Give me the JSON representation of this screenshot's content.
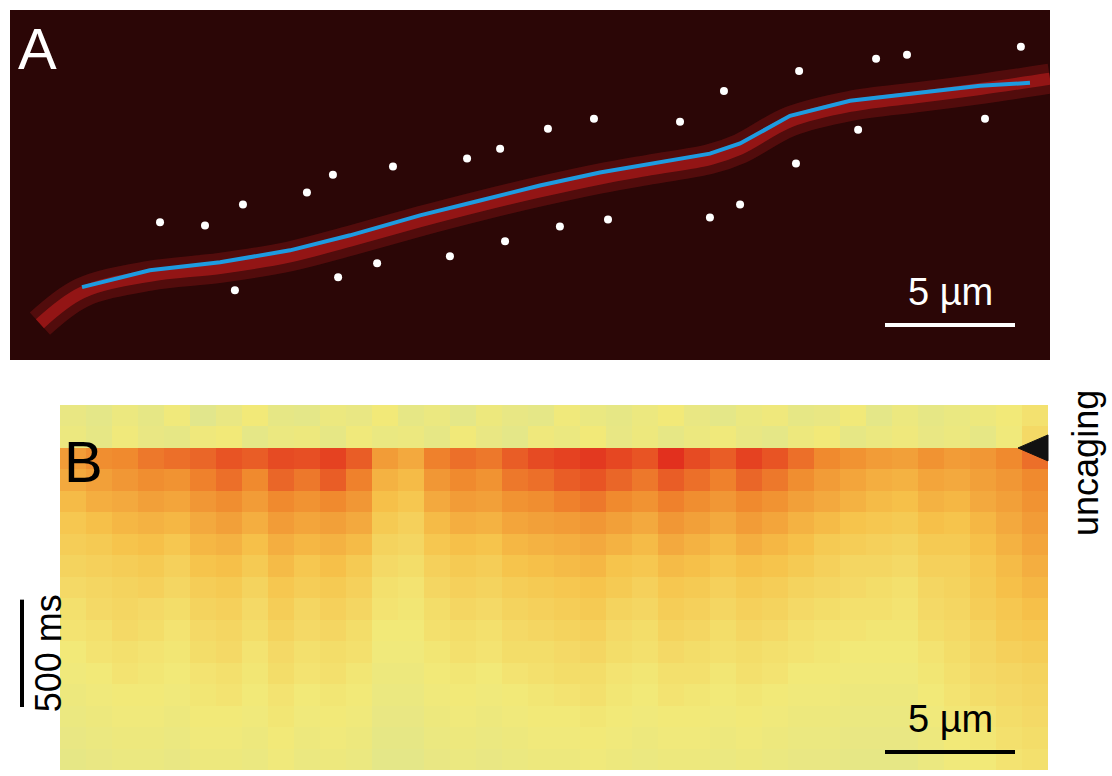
{
  "chart_data": [
    {
      "type": "scatter",
      "panel": "A",
      "xlim": [
        0,
        40
      ],
      "ylim": [
        0,
        13.5
      ],
      "tick_labels": false,
      "grid": false,
      "series": [
        {
          "type": "line",
          "line_style": "wide",
          "color": "#c81e1e",
          "x": [
            1.15,
            2.77,
            5.38,
            8.08,
            10.77,
            13.08,
            15.77,
            18.08,
            20.38,
            22.69,
            24.62,
            26.92,
            28.08,
            30.0,
            32.31,
            35.0,
            37.31,
            40.0
          ],
          "values": [
            1.4,
            2.6,
            3.25,
            3.55,
            4.0,
            4.6,
            5.35,
            5.95,
            6.5,
            7.0,
            7.35,
            7.75,
            8.15,
            9.2,
            9.8,
            10.15,
            10.45,
            10.85
          ]
        },
        {
          "type": "line",
          "line_style": "solid",
          "color": "#1e9be0",
          "x": [
            2.77,
            5.38,
            8.08,
            10.77,
            13.08,
            15.77,
            18.08,
            20.38,
            22.69,
            24.62,
            26.92,
            28.08,
            30.0,
            32.31,
            35.0,
            37.31,
            39.23
          ],
          "values": [
            2.81,
            3.46,
            3.77,
            4.23,
            4.81,
            5.58,
            6.15,
            6.73,
            7.23,
            7.58,
            7.96,
            8.35,
            9.42,
            10.0,
            10.31,
            10.58,
            10.69
          ]
        },
        {
          "type": "scatter",
          "marker": "circle",
          "color": "#ffffff",
          "x": [
            5.77,
            7.5,
            8.96,
            8.65,
            11.42,
            12.42,
            12.62,
            14.12,
            14.73,
            16.92,
            17.58,
            18.85,
            19.04,
            20.69,
            21.15,
            22.46,
            23.0,
            25.77,
            26.92,
            27.46,
            28.08,
            30.23,
            30.35,
            32.62,
            33.31,
            34.5,
            37.5,
            38.88
          ],
          "values": [
            5.31,
            5.19,
            6.0,
            2.69,
            6.46,
            7.15,
            3.19,
            3.73,
            7.46,
            4.0,
            7.77,
            8.15,
            4.58,
            8.92,
            5.15,
            9.31,
            5.42,
            9.19,
            5.5,
            10.38,
            6.0,
            7.58,
            11.15,
            8.88,
            11.62,
            11.77,
            9.31,
            12.08
          ]
        }
      ],
      "scale_bar": {
        "axis": "x",
        "length": 5,
        "label": "5 µm"
      }
    },
    {
      "type": "heatmap",
      "panel": "B",
      "xlim": [
        0,
        38
      ],
      "ylim": [
        1700,
        0
      ],
      "tick_labels": false,
      "zlim": [
        0,
        1
      ],
      "x": [
        0.5,
        1.5,
        2.5,
        3.5,
        4.5,
        5.5,
        6.5,
        7.5,
        8.5,
        9.5,
        10.5,
        11.5,
        12.5,
        13.5,
        14.5,
        15.5,
        16.5,
        17.5,
        18.5,
        19.5,
        20.5,
        21.5,
        22.5,
        23.5,
        24.5,
        25.5,
        26.5,
        27.5,
        28.5,
        29.5,
        30.5,
        31.5,
        32.5,
        33.5,
        34.5,
        35.5,
        36.5,
        37.5
      ],
      "y": [
        50,
        150,
        250,
        350,
        450,
        550,
        650,
        750,
        850,
        950,
        1050,
        1150,
        1250,
        1350,
        1450,
        1550,
        1650
      ],
      "z": [
        [
          0.22,
          0.18,
          0.25,
          0.2,
          0.28,
          0.15,
          0.22,
          0.3,
          0.2,
          0.18,
          0.25,
          0.22,
          0.3,
          0.2,
          0.24,
          0.18,
          0.26,
          0.21,
          0.19,
          0.28,
          0.23,
          0.2,
          0.25,
          0.3,
          0.22,
          0.18,
          0.24,
          0.27,
          0.2,
          0.22,
          0.29,
          0.18,
          0.25,
          0.2,
          0.23,
          0.26,
          0.3,
          0.35
        ],
        [
          0.25,
          0.2,
          0.28,
          0.22,
          0.2,
          0.27,
          0.3,
          0.19,
          0.24,
          0.26,
          0.2,
          0.28,
          0.23,
          0.25,
          0.2,
          0.29,
          0.22,
          0.18,
          0.27,
          0.24,
          0.3,
          0.21,
          0.26,
          0.2,
          0.25,
          0.28,
          0.22,
          0.19,
          0.26,
          0.3,
          0.2,
          0.24,
          0.27,
          0.22,
          0.25,
          0.2,
          0.28,
          0.4
        ],
        [
          0.72,
          0.78,
          0.8,
          0.84,
          0.86,
          0.88,
          0.92,
          0.9,
          0.94,
          0.93,
          0.96,
          0.9,
          0.72,
          0.66,
          0.82,
          0.86,
          0.84,
          0.9,
          0.94,
          0.96,
          0.98,
          0.95,
          0.92,
          1.0,
          0.94,
          0.9,
          0.96,
          0.92,
          0.86,
          0.8,
          0.76,
          0.72,
          0.7,
          0.76,
          0.72,
          0.74,
          0.8,
          0.86
        ],
        [
          0.66,
          0.7,
          0.74,
          0.78,
          0.76,
          0.82,
          0.86,
          0.8,
          0.88,
          0.84,
          0.9,
          0.82,
          0.62,
          0.58,
          0.74,
          0.8,
          0.76,
          0.84,
          0.86,
          0.9,
          0.92,
          0.88,
          0.84,
          0.9,
          0.86,
          0.82,
          0.88,
          0.84,
          0.78,
          0.72,
          0.68,
          0.64,
          0.62,
          0.68,
          0.66,
          0.7,
          0.74,
          0.8
        ],
        [
          0.58,
          0.64,
          0.66,
          0.7,
          0.68,
          0.74,
          0.78,
          0.72,
          0.8,
          0.76,
          0.8,
          0.74,
          0.56,
          0.52,
          0.66,
          0.72,
          0.7,
          0.76,
          0.78,
          0.82,
          0.84,
          0.8,
          0.76,
          0.82,
          0.78,
          0.74,
          0.8,
          0.76,
          0.7,
          0.66,
          0.62,
          0.58,
          0.56,
          0.62,
          0.6,
          0.66,
          0.7,
          0.76
        ],
        [
          0.52,
          0.56,
          0.6,
          0.62,
          0.6,
          0.66,
          0.7,
          0.64,
          0.72,
          0.68,
          0.7,
          0.66,
          0.5,
          0.46,
          0.58,
          0.64,
          0.62,
          0.68,
          0.7,
          0.72,
          0.74,
          0.7,
          0.66,
          0.74,
          0.7,
          0.66,
          0.72,
          0.68,
          0.62,
          0.58,
          0.54,
          0.52,
          0.5,
          0.56,
          0.54,
          0.6,
          0.66,
          0.72
        ],
        [
          0.48,
          0.5,
          0.54,
          0.56,
          0.52,
          0.6,
          0.62,
          0.56,
          0.64,
          0.6,
          0.62,
          0.58,
          0.44,
          0.42,
          0.52,
          0.56,
          0.54,
          0.6,
          0.62,
          0.64,
          0.66,
          0.62,
          0.58,
          0.66,
          0.62,
          0.58,
          0.64,
          0.6,
          0.56,
          0.5,
          0.48,
          0.46,
          0.44,
          0.5,
          0.5,
          0.56,
          0.62,
          0.68
        ],
        [
          0.44,
          0.46,
          0.48,
          0.5,
          0.46,
          0.54,
          0.56,
          0.5,
          0.58,
          0.52,
          0.56,
          0.5,
          0.4,
          0.38,
          0.46,
          0.5,
          0.48,
          0.54,
          0.56,
          0.58,
          0.6,
          0.54,
          0.52,
          0.58,
          0.56,
          0.52,
          0.56,
          0.54,
          0.5,
          0.46,
          0.42,
          0.42,
          0.4,
          0.46,
          0.46,
          0.52,
          0.58,
          0.64
        ],
        [
          0.4,
          0.42,
          0.44,
          0.46,
          0.42,
          0.48,
          0.5,
          0.44,
          0.52,
          0.48,
          0.5,
          0.46,
          0.36,
          0.34,
          0.42,
          0.46,
          0.44,
          0.48,
          0.5,
          0.52,
          0.54,
          0.5,
          0.46,
          0.52,
          0.5,
          0.46,
          0.5,
          0.48,
          0.44,
          0.42,
          0.4,
          0.38,
          0.36,
          0.42,
          0.44,
          0.5,
          0.56,
          0.6
        ],
        [
          0.36,
          0.4,
          0.42,
          0.4,
          0.38,
          0.44,
          0.46,
          0.4,
          0.48,
          0.42,
          0.46,
          0.42,
          0.34,
          0.32,
          0.38,
          0.42,
          0.4,
          0.44,
          0.46,
          0.48,
          0.5,
          0.44,
          0.42,
          0.48,
          0.46,
          0.42,
          0.46,
          0.44,
          0.4,
          0.38,
          0.36,
          0.36,
          0.34,
          0.4,
          0.42,
          0.48,
          0.52,
          0.56
        ],
        [
          0.34,
          0.36,
          0.4,
          0.38,
          0.34,
          0.4,
          0.42,
          0.38,
          0.44,
          0.4,
          0.42,
          0.38,
          0.3,
          0.3,
          0.36,
          0.38,
          0.36,
          0.4,
          0.42,
          0.44,
          0.46,
          0.4,
          0.38,
          0.44,
          0.42,
          0.38,
          0.42,
          0.4,
          0.36,
          0.34,
          0.34,
          0.32,
          0.32,
          0.38,
          0.4,
          0.44,
          0.5,
          0.52
        ],
        [
          0.3,
          0.34,
          0.36,
          0.34,
          0.32,
          0.38,
          0.4,
          0.34,
          0.4,
          0.36,
          0.38,
          0.36,
          0.28,
          0.28,
          0.32,
          0.36,
          0.34,
          0.38,
          0.38,
          0.4,
          0.42,
          0.38,
          0.36,
          0.4,
          0.38,
          0.36,
          0.38,
          0.36,
          0.34,
          0.32,
          0.3,
          0.3,
          0.3,
          0.34,
          0.38,
          0.42,
          0.46,
          0.48
        ],
        [
          0.28,
          0.3,
          0.34,
          0.32,
          0.3,
          0.34,
          0.36,
          0.32,
          0.38,
          0.34,
          0.36,
          0.32,
          0.26,
          0.26,
          0.3,
          0.32,
          0.3,
          0.34,
          0.36,
          0.38,
          0.38,
          0.34,
          0.32,
          0.36,
          0.36,
          0.32,
          0.36,
          0.34,
          0.3,
          0.3,
          0.28,
          0.28,
          0.28,
          0.32,
          0.36,
          0.4,
          0.42,
          0.44
        ],
        [
          0.26,
          0.28,
          0.3,
          0.3,
          0.28,
          0.32,
          0.34,
          0.3,
          0.34,
          0.3,
          0.32,
          0.3,
          0.24,
          0.24,
          0.28,
          0.3,
          0.28,
          0.3,
          0.32,
          0.34,
          0.36,
          0.32,
          0.3,
          0.34,
          0.32,
          0.3,
          0.32,
          0.3,
          0.28,
          0.28,
          0.26,
          0.26,
          0.26,
          0.3,
          0.34,
          0.38,
          0.4,
          0.42
        ],
        [
          0.24,
          0.26,
          0.28,
          0.28,
          0.26,
          0.3,
          0.3,
          0.28,
          0.32,
          0.28,
          0.3,
          0.28,
          0.22,
          0.22,
          0.26,
          0.28,
          0.26,
          0.28,
          0.3,
          0.3,
          0.32,
          0.3,
          0.28,
          0.3,
          0.3,
          0.28,
          0.3,
          0.28,
          0.26,
          0.26,
          0.24,
          0.24,
          0.24,
          0.28,
          0.32,
          0.34,
          0.38,
          0.4
        ],
        [
          0.22,
          0.24,
          0.26,
          0.26,
          0.24,
          0.28,
          0.28,
          0.26,
          0.3,
          0.26,
          0.28,
          0.26,
          0.2,
          0.2,
          0.24,
          0.26,
          0.24,
          0.26,
          0.28,
          0.28,
          0.3,
          0.28,
          0.26,
          0.28,
          0.28,
          0.26,
          0.28,
          0.26,
          0.24,
          0.24,
          0.22,
          0.22,
          0.22,
          0.26,
          0.3,
          0.32,
          0.36,
          0.38
        ],
        [
          0.2,
          0.22,
          0.24,
          0.24,
          0.22,
          0.26,
          0.26,
          0.24,
          0.28,
          0.24,
          0.26,
          0.24,
          0.18,
          0.18,
          0.22,
          0.24,
          0.22,
          0.24,
          0.26,
          0.26,
          0.28,
          0.26,
          0.24,
          0.26,
          0.26,
          0.24,
          0.26,
          0.24,
          0.22,
          0.22,
          0.2,
          0.2,
          0.2,
          0.24,
          0.28,
          0.3,
          0.34,
          0.36
        ]
      ],
      "scale_bars": [
        {
          "axis": "x",
          "length": 5,
          "label": "5 µm"
        },
        {
          "axis": "y",
          "length": 500,
          "label": "500 ms"
        }
      ],
      "annotations": [
        {
          "text": "uncaging",
          "y": 200
        }
      ]
    }
  ]
}
